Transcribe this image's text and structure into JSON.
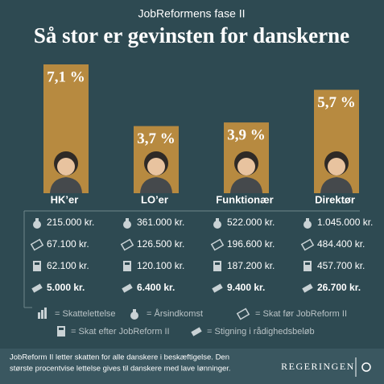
{
  "chart_data": {
    "type": "bar",
    "subtitle": "JobReformens fase II",
    "title": "Så stor er gevinsten for danskerne",
    "categories": [
      "HK’er",
      "LO’er",
      "Funktionær",
      "Direktør"
    ],
    "values": [
      7.1,
      3.7,
      3.9,
      5.7
    ],
    "value_labels": [
      "7,1 %",
      "3,7 %",
      "3,9 %",
      "5,7 %"
    ],
    "color": "#b78a40"
  },
  "table": {
    "columns": [
      [
        "215.000 kr.",
        "67.100 kr.",
        "62.100 kr.",
        "5.000 kr."
      ],
      [
        "361.000 kr.",
        "126.500 kr.",
        "120.100 kr.",
        "6.400 kr."
      ],
      [
        "522.000 kr.",
        "196.600 kr.",
        "187.200 kr.",
        "9.400 kr."
      ],
      [
        "1.045.000 kr.",
        "484.400 kr.",
        "457.700 kr.",
        "26.700 kr."
      ]
    ]
  },
  "legend": [
    "= Skattelettelse",
    "= Årsindkomst",
    "= Skat før JobReform II",
    "= Skat efter JobReform II",
    "= Stigning i rådighedsbeløb"
  ],
  "footer": {
    "lines": [
      "JobReform II letter skatten for alle danskere i beskæftigelse. Den",
      "største procentvise lettelse gives til danskere med lave lønninger."
    ],
    "logo": "REGERINGEN"
  }
}
